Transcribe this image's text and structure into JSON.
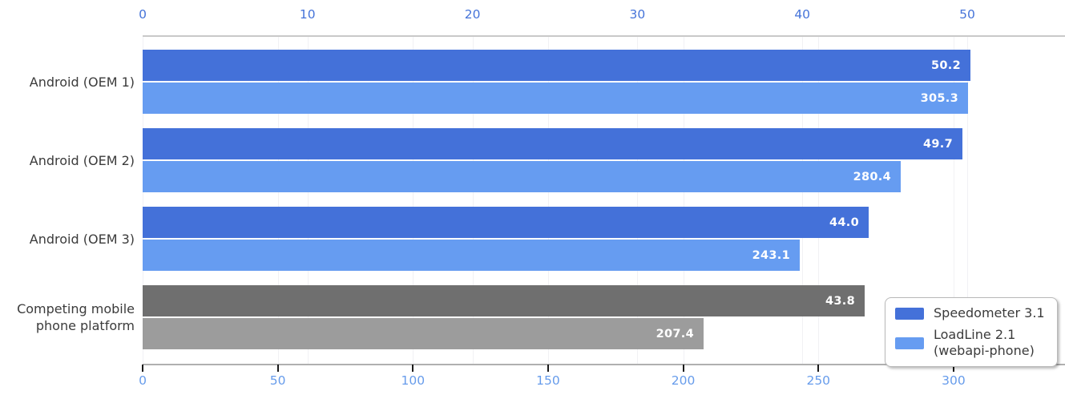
{
  "chart_data": {
    "type": "bar",
    "orientation": "horizontal",
    "title": "",
    "categories": [
      "Android (OEM 1)",
      "Android (OEM 2)",
      "Android (OEM 3)",
      "Competing mobile\nphone platform"
    ],
    "series": [
      {
        "name": "Speedometer 3.1",
        "axis": "top",
        "values": [
          50.2,
          49.7,
          44.0,
          43.8
        ],
        "value_labels": [
          "50.2",
          "49.7",
          "44.0",
          "43.8"
        ],
        "color": "#4471d9",
        "color_competing": "#6f6f6f"
      },
      {
        "name": "LoadLine 2.1 (webapi-phone)",
        "axis": "bottom",
        "values": [
          305.3,
          280.4,
          243.1,
          207.4
        ],
        "value_labels": [
          "305.3",
          "280.4",
          "243.1",
          "207.4"
        ],
        "color": "#669cf1",
        "color_competing": "#9c9c9c"
      }
    ],
    "competing_category_index": 3,
    "axes": {
      "top": {
        "tick_values": [
          0,
          10,
          20,
          30,
          40,
          50
        ],
        "tick_labels": [
          "0",
          "10",
          "20",
          "30",
          "40",
          "50"
        ],
        "range": [
          0,
          55.8
        ],
        "label_color": "#4674d9"
      },
      "bottom": {
        "tick_values": [
          0,
          50,
          100,
          150,
          200,
          250,
          300
        ],
        "tick_labels": [
          "0",
          "50",
          "100",
          "150",
          "200",
          "250",
          "300"
        ],
        "range": [
          0,
          340
        ],
        "label_color": "#679ceb"
      }
    },
    "grid": true,
    "legend": {
      "position": "bottom-right",
      "entries": [
        {
          "label": "Speedometer 3.1",
          "color": "#4471d9"
        },
        {
          "label": "LoadLine 2.1\n(webapi-phone)",
          "color": "#669cf1"
        }
      ]
    },
    "value_label_color": "#ffffff",
    "category_label_color": "#3b3b3b"
  }
}
